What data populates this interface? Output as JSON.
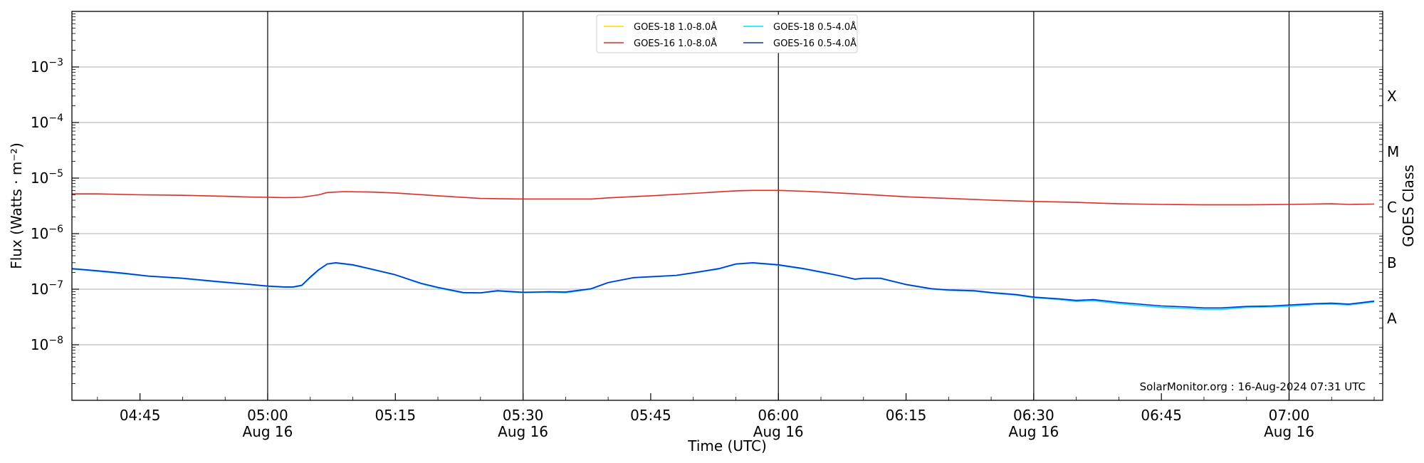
{
  "chart_data": {
    "type": "line",
    "xlabel": "Time (UTC)",
    "ylabel": "Flux (Watts · m⁻²)",
    "y2label": "GOES Class",
    "yscale": "log",
    "ylim": [
      1e-09,
      0.01
    ],
    "xlim": [
      "04:37",
      "07:08"
    ],
    "date": "Aug 16",
    "grid": "horizontal",
    "legend_position": "top-center",
    "credit": "SolarMonitor.org : 16-Aug-2024 07:31 UTC",
    "x_ticks": [
      {
        "label": "04:45",
        "minutes": 45,
        "sub": ""
      },
      {
        "label": "05:00",
        "minutes": 60,
        "sub": "Aug 16"
      },
      {
        "label": "05:15",
        "minutes": 75,
        "sub": ""
      },
      {
        "label": "05:30",
        "minutes": 90,
        "sub": "Aug 16"
      },
      {
        "label": "05:45",
        "minutes": 105,
        "sub": ""
      },
      {
        "label": "06:00",
        "minutes": 120,
        "sub": "Aug 16"
      },
      {
        "label": "06:15",
        "minutes": 135,
        "sub": ""
      },
      {
        "label": "06:30",
        "minutes": 150,
        "sub": "Aug 16"
      },
      {
        "label": "06:45",
        "minutes": 165,
        "sub": ""
      },
      {
        "label": "07:00",
        "minutes": 180,
        "sub": "Aug 16"
      }
    ],
    "y_ticks": [
      {
        "base": "10",
        "exp": "−3",
        "value": 0.001
      },
      {
        "base": "10",
        "exp": "−4",
        "value": 0.0001
      },
      {
        "base": "10",
        "exp": "−5",
        "value": 1e-05
      },
      {
        "base": "10",
        "exp": "−6",
        "value": 1e-06
      },
      {
        "base": "10",
        "exp": "−7",
        "value": 1e-07
      },
      {
        "base": "10",
        "exp": "−8",
        "value": 1e-08
      }
    ],
    "classes": [
      {
        "label": "X",
        "value": 0.0003
      },
      {
        "label": "M",
        "value": 3e-05
      },
      {
        "label": "C",
        "value": 3e-06
      },
      {
        "label": "B",
        "value": 3e-07
      },
      {
        "label": "A",
        "value": 3e-08
      }
    ],
    "vlines_minutes": [
      60,
      90,
      120,
      150,
      180
    ],
    "series": [
      {
        "name": "GOES-18 1.0-8.0Å",
        "color": "#ffd700",
        "x": [],
        "values": []
      },
      {
        "name": "GOES-16 1.0-8.0Å",
        "color": "#e8281e",
        "x": [
          37,
          40,
          45,
          50,
          55,
          58,
          60,
          62,
          64,
          66,
          67,
          69,
          72,
          75,
          80,
          85,
          90,
          95,
          98,
          100,
          105,
          110,
          115,
          117,
          120,
          123,
          125,
          130,
          135,
          140,
          145,
          150,
          155,
          160,
          165,
          170,
          175,
          180,
          185,
          187,
          190
        ],
        "values": [
          5.2e-06,
          5.2e-06,
          5e-06,
          4.9e-06,
          4.7e-06,
          4.55e-06,
          4.5e-06,
          4.45e-06,
          4.5e-06,
          5e-06,
          5.5e-06,
          5.7e-06,
          5.6e-06,
          5.4e-06,
          4.8e-06,
          4.3e-06,
          4.2e-06,
          4.2e-06,
          4.2e-06,
          4.4e-06,
          4.8e-06,
          5.3e-06,
          5.9e-06,
          6e-06,
          6e-06,
          5.8e-06,
          5.6e-06,
          5.1e-06,
          4.6e-06,
          4.3e-06,
          4e-06,
          3.8e-06,
          3.65e-06,
          3.45e-06,
          3.35e-06,
          3.3e-06,
          3.3e-06,
          3.35e-06,
          3.45e-06,
          3.35e-06,
          3.4e-06
        ]
      },
      {
        "name": "GOES-18 0.5-4.0Å",
        "color": "#00e0ff",
        "x": [
          37,
          40,
          43,
          46,
          50,
          54,
          58,
          60,
          62,
          63,
          64,
          65,
          66,
          67,
          68,
          70,
          72,
          75,
          78,
          80,
          83,
          85,
          87,
          90,
          93,
          95,
          98,
          100,
          103,
          105,
          108,
          110,
          113,
          115,
          117,
          120,
          123,
          125,
          127,
          129,
          130,
          132,
          135,
          138,
          140,
          143,
          145,
          148,
          150,
          153,
          155,
          157,
          160,
          163,
          165,
          168,
          170,
          172,
          175,
          178,
          180,
          183,
          185,
          187,
          190
        ],
        "values": [
          2.3e-07,
          2.1e-07,
          1.9e-07,
          1.7e-07,
          1.55e-07,
          1.35e-07,
          1.2e-07,
          1.12e-07,
          1.08e-07,
          1.08e-07,
          1.15e-07,
          1.6e-07,
          2.2e-07,
          2.8e-07,
          2.95e-07,
          2.7e-07,
          2.3e-07,
          1.8e-07,
          1.25e-07,
          1.05e-07,
          8.5e-08,
          8.5e-08,
          9.2e-08,
          8.6e-08,
          8.8e-08,
          8.6e-08,
          1e-07,
          1.3e-07,
          1.6e-07,
          1.65e-07,
          1.75e-07,
          1.95e-07,
          2.3e-07,
          2.8e-07,
          2.95e-07,
          2.7e-07,
          2.3e-07,
          2e-07,
          1.75e-07,
          1.5e-07,
          1.55e-07,
          1.55e-07,
          1.2e-07,
          1e-07,
          9.5e-08,
          9.2e-08,
          8.5e-08,
          7.8e-08,
          7e-08,
          6.5e-08,
          6e-08,
          6.2e-08,
          5.5e-08,
          5e-08,
          4.7e-08,
          4.5e-08,
          4.3e-08,
          4.3e-08,
          4.7e-08,
          4.8e-08,
          4.9e-08,
          5.3e-08,
          5.4e-08,
          5.2e-08,
          5.9e-08
        ]
      },
      {
        "name": "GOES-16 0.5-4.0Å",
        "color": "#0a2ad8",
        "x": [
          37,
          40,
          43,
          46,
          50,
          54,
          58,
          60,
          62,
          63,
          64,
          65,
          66,
          67,
          68,
          70,
          72,
          75,
          78,
          80,
          83,
          85,
          87,
          90,
          93,
          95,
          98,
          100,
          103,
          105,
          108,
          110,
          113,
          115,
          117,
          120,
          123,
          125,
          127,
          129,
          130,
          132,
          135,
          138,
          140,
          143,
          145,
          148,
          150,
          153,
          155,
          157,
          160,
          163,
          165,
          168,
          170,
          172,
          175,
          178,
          180,
          183,
          185,
          187,
          190
        ],
        "values": [
          2.35e-07,
          2.15e-07,
          1.95e-07,
          1.72e-07,
          1.58e-07,
          1.38e-07,
          1.22e-07,
          1.14e-07,
          1.1e-07,
          1.1e-07,
          1.18e-07,
          1.65e-07,
          2.25e-07,
          2.85e-07,
          3e-07,
          2.75e-07,
          2.35e-07,
          1.82e-07,
          1.28e-07,
          1.08e-07,
          8.7e-08,
          8.6e-08,
          9.4e-08,
          8.8e-08,
          9e-08,
          8.9e-08,
          1.02e-07,
          1.32e-07,
          1.62e-07,
          1.68e-07,
          1.78e-07,
          1.98e-07,
          2.35e-07,
          2.85e-07,
          3e-07,
          2.75e-07,
          2.35e-07,
          2.05e-07,
          1.78e-07,
          1.52e-07,
          1.58e-07,
          1.58e-07,
          1.22e-07,
          1.02e-07,
          9.7e-08,
          9.4e-08,
          8.7e-08,
          8e-08,
          7.2e-08,
          6.7e-08,
          6.3e-08,
          6.5e-08,
          5.8e-08,
          5.3e-08,
          5e-08,
          4.8e-08,
          4.6e-08,
          4.6e-08,
          4.9e-08,
          5e-08,
          5.2e-08,
          5.5e-08,
          5.6e-08,
          5.4e-08,
          6.1e-08
        ]
      }
    ]
  }
}
